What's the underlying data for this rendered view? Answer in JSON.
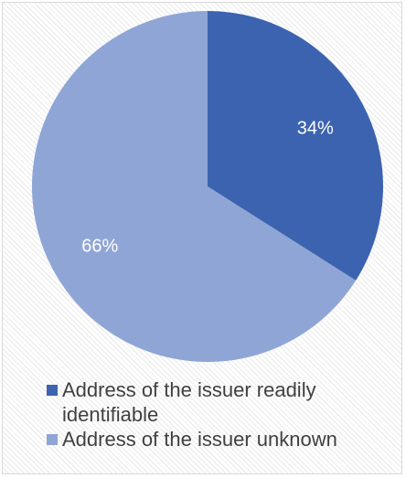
{
  "chart_data": {
    "type": "pie",
    "title": "",
    "slices": [
      {
        "label": "Address of the issuer readily identifiable",
        "value": 34,
        "data_label": "34%",
        "color": "#3c63b0"
      },
      {
        "label": "Address of the issuer unknown",
        "value": 66,
        "data_label": "66%",
        "color": "#8fa5d6"
      }
    ],
    "legend_position": "bottom",
    "data_label_color": "#ffffff",
    "start_angle": "12 o'clock",
    "direction": "clockwise"
  }
}
